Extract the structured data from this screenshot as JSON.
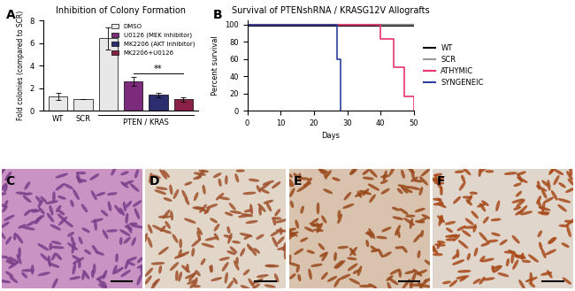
{
  "chart_data": [
    {
      "type": "bar",
      "label": "A",
      "title": "Inhibition of Colony Formation",
      "y_label": "Fold colonies (compared to SCR)",
      "categories": [
        "WT",
        "SCR",
        null,
        null,
        null,
        null
      ],
      "series": [
        {
          "color": "#e8e8e8",
          "values": [
            1.25,
            1.0,
            null,
            null,
            null,
            null
          ],
          "errors": [
            0.3,
            0,
            null,
            null,
            null,
            null
          ]
        },
        {
          "name": "DMSO",
          "color": "#e8e8e8",
          "values": [
            null,
            null,
            6.4,
            null,
            null,
            null
          ],
          "errors": [
            null,
            null,
            1.0,
            null,
            null,
            null
          ]
        },
        {
          "name": "U0126 (MEK inhibitor)",
          "color": "#7b2a7c",
          "values": [
            null,
            null,
            null,
            2.6,
            null,
            null
          ],
          "errors": [
            null,
            null,
            null,
            0.4,
            null,
            null
          ]
        },
        {
          "name": "MK2206 (AKT inhibitor)",
          "color": "#2b2d6e",
          "values": [
            null,
            null,
            null,
            null,
            1.4,
            null
          ],
          "errors": [
            null,
            null,
            null,
            null,
            0.2,
            null
          ]
        },
        {
          "name": "MK2206+U0126",
          "color": "#8b2046",
          "values": [
            null,
            null,
            null,
            null,
            null,
            1.0
          ],
          "errors": [
            null,
            null,
            null,
            null,
            null,
            0.2
          ]
        }
      ],
      "ylim": [
        0,
        8
      ],
      "yticks": [
        0,
        2,
        4,
        6,
        8
      ],
      "legend": "upper right",
      "annotations": [
        {
          "text": "**",
          "y": 3.3,
          "from": "U0126 (MEK inhibitor)",
          "to": "MK2206+U0126"
        }
      ],
      "groups": [
        {
          "text": "PTEN / KRAS",
          "from": "DMSO",
          "to": "MK2206+U0126"
        }
      ]
    },
    {
      "type": "line",
      "label": "B",
      "title": "Survival of PTENshRNA / KRASG12V Allografts",
      "x_label": "Days",
      "y_label": "Percent survival",
      "line_style": "steps",
      "series": [
        {
          "name": "WT",
          "color": "#000000",
          "x": [
            0,
            50
          ],
          "values": [
            100,
            100
          ]
        },
        {
          "name": "SCR",
          "color": "#999999",
          "x": [
            0,
            50
          ],
          "values": [
            100,
            100
          ]
        },
        {
          "name": "ATHYMIC",
          "color": "#e8336e",
          "x": [
            0,
            40,
            44,
            47,
            50
          ],
          "values": [
            100,
            83,
            50,
            17,
            0
          ]
        },
        {
          "name": "SYNGENEIC",
          "color": "#2a3f9e",
          "x": [
            0,
            27,
            28
          ],
          "values": [
            100,
            60,
            0
          ]
        }
      ],
      "xlim": [
        0,
        50
      ],
      "xticks": [
        0,
        10,
        20,
        30,
        40,
        50
      ],
      "ylim": [
        0,
        105
      ],
      "yticks": [
        0,
        20,
        40,
        60,
        80,
        100
      ],
      "legend": "center left"
    }
  ],
  "panels": [
    {
      "label": "C"
    },
    {
      "label": "D"
    },
    {
      "label": "E"
    },
    {
      "label": "F"
    }
  ]
}
